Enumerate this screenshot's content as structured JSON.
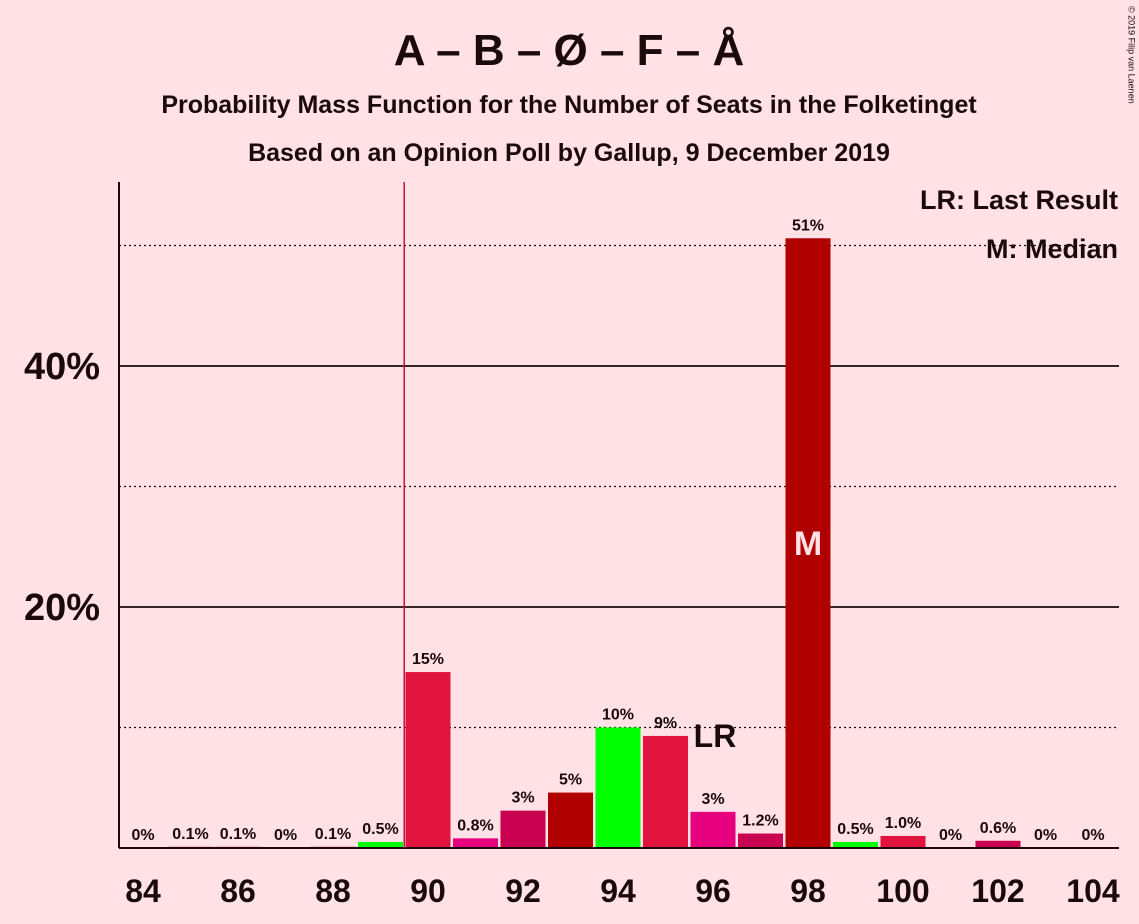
{
  "copyright": "© 2019 Filip van Laenen",
  "chart_data": {
    "type": "bar",
    "title": "A – B – Ø – F – Å",
    "subtitle1": "Probability Mass Function for the Number of Seats in the Folketinget",
    "subtitle2": "Based on an Opinion Poll by Gallup, 9 December 2019",
    "x": [
      84,
      85,
      86,
      87,
      88,
      89,
      90,
      91,
      92,
      93,
      94,
      95,
      96,
      97,
      98,
      99,
      100,
      101,
      102,
      103,
      104
    ],
    "values": [
      0,
      0.1,
      0.1,
      0,
      0.1,
      0.5,
      14.6,
      0.8,
      3.1,
      4.6,
      10.0,
      9.3,
      3.0,
      1.2,
      50.6,
      0.5,
      1.0,
      0,
      0.6,
      0,
      0
    ],
    "labels": [
      "0%",
      "0.1%",
      "0.1%",
      "0%",
      "0.1%",
      "0.5%",
      "15%",
      "0.8%",
      "3%",
      "5%",
      "10%",
      "9%",
      "3%",
      "1.2%",
      "51%",
      "0.5%",
      "1.0%",
      "0%",
      "0.6%",
      "0%",
      "0%"
    ],
    "colors": [
      "#e0143c",
      "#e0143c",
      "#e0143c",
      "#e0143c",
      "#e0143c",
      "#00ff00",
      "#e0143c",
      "#e6007e",
      "#c8004f",
      "#b00000",
      "#00ff00",
      "#e0143c",
      "#e6007e",
      "#c8004f",
      "#b00000",
      "#00ff00",
      "#e0143c",
      "#e6007e",
      "#c8004f",
      "#b00000",
      "#00ff00"
    ],
    "xticks": [
      "84",
      "86",
      "88",
      "90",
      "92",
      "94",
      "96",
      "98",
      "100",
      "102",
      "104"
    ],
    "yticks": [
      {
        "value": 20,
        "label": "20%"
      },
      {
        "value": 40,
        "label": "40%"
      }
    ],
    "minor_gridlines": [
      10,
      30,
      50
    ],
    "ylim": [
      0,
      55
    ],
    "last_result_seat": 89.5,
    "last_result_label_seat": 96,
    "median_seat": 98,
    "lr_marker": "LR",
    "median_marker": "M",
    "legend": {
      "lr": "LR: Last Result",
      "median": "M: Median",
      "position": "top-right"
    }
  }
}
